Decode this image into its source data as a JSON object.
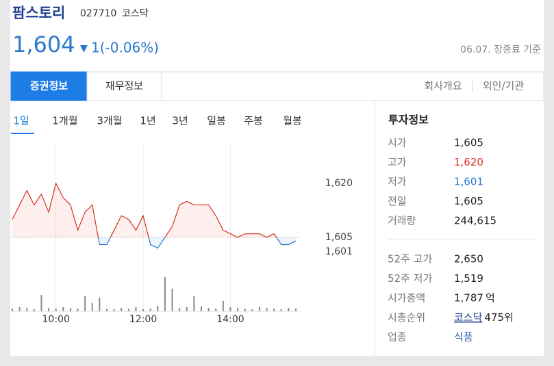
{
  "header": {
    "name": "팜스토리",
    "code": "027710",
    "market": "코스닥",
    "price": "1,604",
    "direction": "▼",
    "change": "1(-0.06%)",
    "date": "06.07. 장종료 기준"
  },
  "tabs": {
    "main": [
      "증권정보",
      "재무정보"
    ],
    "links": [
      "회사개요",
      "외인/기관"
    ],
    "periods": [
      "1일",
      "1개월",
      "3개월",
      "1년",
      "3년",
      "일봉",
      "주봉",
      "월봉"
    ]
  },
  "chart_data": {
    "type": "line",
    "x": [
      "09:00",
      "09:10",
      "09:20",
      "09:30",
      "09:40",
      "09:50",
      "10:00",
      "10:10",
      "10:20",
      "10:30",
      "10:40",
      "10:50",
      "11:00",
      "11:10",
      "11:20",
      "11:30",
      "11:40",
      "11:50",
      "12:00",
      "12:10",
      "12:20",
      "12:30",
      "12:40",
      "12:50",
      "13:00",
      "13:10",
      "13:20",
      "13:30",
      "13:40",
      "13:50",
      "14:00",
      "14:10",
      "14:20",
      "14:30",
      "14:40",
      "14:50",
      "15:00",
      "15:10",
      "15:20",
      "15:30"
    ],
    "values": [
      1610,
      1614,
      1618,
      1614,
      1617,
      1612,
      1620,
      1616,
      1614,
      1607,
      1612,
      1614,
      1603,
      1603,
      1607,
      1611,
      1610,
      1607,
      1611,
      1603,
      1602,
      1605,
      1608,
      1614,
      1615,
      1614,
      1614,
      1614,
      1611,
      1607,
      1606,
      1605,
      1606,
      1606,
      1606,
      1605,
      1606,
      1603,
      1603,
      1604
    ],
    "baseline": 1605,
    "up_color": "#d9301f",
    "down_color": "#2a78cf",
    "ylim": [
      1601,
      1620
    ],
    "yticks": [
      {
        "value": 1620,
        "label": "1,620"
      },
      {
        "value": 1605,
        "label": "1,605"
      },
      {
        "value": 1601,
        "label": "1,601"
      }
    ],
    "xticks": [
      "10:00",
      "12:00",
      "14:00"
    ],
    "volume": [
      4,
      6,
      5,
      3,
      24,
      5,
      4,
      6,
      5,
      4,
      22,
      12,
      20,
      4,
      3,
      5,
      4,
      6,
      3,
      4,
      8,
      50,
      33,
      5,
      6,
      22,
      7,
      5,
      4,
      15,
      6,
      5,
      4,
      3,
      6,
      5,
      4,
      3,
      5,
      4
    ],
    "volume_color": "#8a8a8a",
    "y2lim": [
      0,
      60
    ]
  },
  "info": {
    "title": "투자정보",
    "groups": [
      [
        {
          "label": "시가",
          "value": "1,605"
        },
        {
          "label": "고가",
          "value": "1,620",
          "color": "#d9301f"
        },
        {
          "label": "저가",
          "value": "1,601",
          "color": "#2a78cf"
        },
        {
          "label": "전일",
          "value": "1,605"
        },
        {
          "label": "거래량",
          "value": "244,615"
        }
      ],
      [
        {
          "label": "52주 고가",
          "value": "2,650"
        },
        {
          "label": "52주 저가",
          "value": "1,519"
        },
        {
          "label": "시가총액",
          "value": "1,787",
          "suffix": "억"
        },
        {
          "label": "시총순위",
          "value": "코스닥",
          "suffix": "475위",
          "link": true
        },
        {
          "label": "업종",
          "value": "식품",
          "color": "#2a5db0"
        }
      ]
    ]
  }
}
